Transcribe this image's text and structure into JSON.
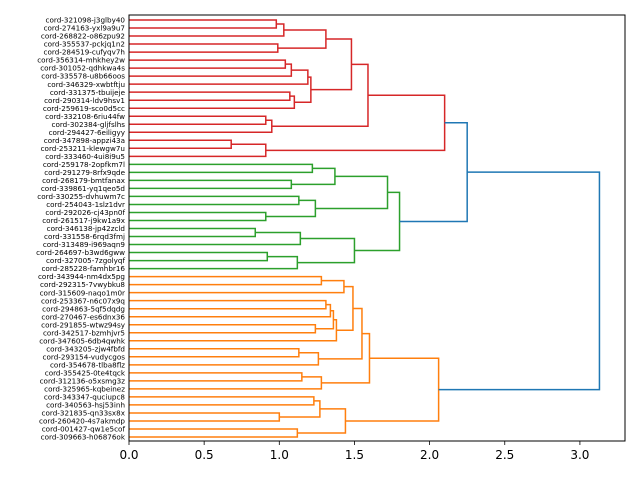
{
  "chart_data": {
    "type": "dendrogram",
    "orientation": "left",
    "title": "",
    "xlabel": "",
    "ylabel": "",
    "xlim": [
      0,
      3.3
    ],
    "xticks": [
      "0.0",
      "0.5",
      "1.0",
      "1.5",
      "2.0",
      "2.5",
      "3.0"
    ],
    "xtick_values": [
      0,
      0.5,
      1.0,
      1.5,
      2.0,
      2.5,
      3.0
    ],
    "colors": {
      "red": "#d62728",
      "green": "#2ca02c",
      "orange": "#ff7f0e",
      "blue": "#1f77b4"
    },
    "leaves": [
      "cord-321098-j3glby40",
      "cord-274163-yxl9a9u7",
      "cord-268822-o86zpu92",
      "cord-355537-pckjq1n2",
      "cord-284519-cufyqv7h",
      "cord-356314-mhkhey2w",
      "cord-301052-qdhkwa4s",
      "cord-335578-u8b66oos",
      "cord-346329-xwbtftju",
      "cord-331375-tbuijeje",
      "cord-290314-ldv9hsv1",
      "cord-259619-sco0d5cc",
      "cord-332108-6riu44fw",
      "cord-302384-gljfslhs",
      "cord-294427-6eiligyy",
      "cord-347898-appzi43a",
      "cord-253211-klewgw7u",
      "cord-333460-4ui8i9u5",
      "cord-259178-2opfkm7l",
      "cord-291279-8rfx9qde",
      "cord-268179-bmtfanax",
      "cord-339861-yq1qeo5d",
      "cord-330255-dvhuwm7c",
      "cord-254043-1slz1dvr",
      "cord-292026-cj43pn0f",
      "cord-261517-j9kw1a9x",
      "cord-346138-jp42zcld",
      "cord-331558-6rqd3fmj",
      "cord-313489-i969aqn9",
      "cord-264697-b3wd6gww",
      "cord-327005-7zgolyqf",
      "cord-285228-famhbr16",
      "cord-343944-nm4dx5pg",
      "cord-292315-7vwybku8",
      "cord-315609-naqo1m0r",
      "cord-253367-n6c07x9q",
      "cord-294863-5qf5dqdg",
      "cord-270467-es6dnx36",
      "cord-291855-wtwz94sy",
      "cord-342517-bzmhjvr5",
      "cord-347605-6db4qwhk",
      "cord-343205-zjw4fbfd",
      "cord-293154-vudycgos",
      "cord-354678-tlba8flz",
      "cord-355425-0te4tqck",
      "cord-312136-o5xsmg3z",
      "cord-325965-kqbeinez",
      "cord-343347-quciupc8",
      "cord-340563-hsj53inh",
      "cord-321835-qn33sx8x",
      "cord-260420-4s7akmdp",
      "cord-001427-qw1e5cof",
      "cord-309663-h06876ok"
    ],
    "merges": [
      {
        "id": "r1",
        "a": "L0",
        "b": "L1",
        "h": 0.98,
        "color": "red"
      },
      {
        "id": "r2",
        "a": "r1",
        "b": "L2",
        "h": 1.03,
        "color": "red"
      },
      {
        "id": "r3",
        "a": "L3",
        "b": "L4",
        "h": 0.99,
        "color": "red"
      },
      {
        "id": "r4",
        "a": "r2",
        "b": "r3",
        "h": 1.31,
        "color": "red"
      },
      {
        "id": "r5",
        "a": "L5",
        "b": "L6",
        "h": 1.04,
        "color": "red"
      },
      {
        "id": "r6",
        "a": "r5",
        "b": "L7",
        "h": 1.08,
        "color": "red"
      },
      {
        "id": "r7",
        "a": "r6",
        "b": "L8",
        "h": 1.19,
        "color": "red"
      },
      {
        "id": "r8",
        "a": "L9",
        "b": "L10",
        "h": 1.07,
        "color": "red"
      },
      {
        "id": "r9",
        "a": "r8",
        "b": "L11",
        "h": 1.1,
        "color": "red"
      },
      {
        "id": "r10",
        "a": "r7",
        "b": "r9",
        "h": 1.21,
        "color": "red"
      },
      {
        "id": "r11",
        "a": "r4",
        "b": "r10",
        "h": 1.48,
        "color": "red"
      },
      {
        "id": "r12",
        "a": "L12",
        "b": "L13",
        "h": 0.91,
        "color": "red"
      },
      {
        "id": "r13",
        "a": "r12",
        "b": "L14",
        "h": 0.95,
        "color": "red"
      },
      {
        "id": "r14",
        "a": "r11",
        "b": "r13",
        "h": 1.59,
        "color": "red"
      },
      {
        "id": "r15",
        "a": "L15",
        "b": "L16",
        "h": 0.68,
        "color": "red"
      },
      {
        "id": "r16",
        "a": "r15",
        "b": "L17",
        "h": 0.91,
        "color": "red"
      },
      {
        "id": "r17",
        "a": "r14",
        "b": "r16",
        "h": 2.1,
        "color": "red"
      },
      {
        "id": "g1",
        "a": "L18",
        "b": "L19",
        "h": 1.22,
        "color": "green"
      },
      {
        "id": "g2",
        "a": "L20",
        "b": "L21",
        "h": 1.08,
        "color": "green"
      },
      {
        "id": "g3",
        "a": "g1",
        "b": "g2",
        "h": 1.37,
        "color": "green"
      },
      {
        "id": "g4",
        "a": "L22",
        "b": "L23",
        "h": 1.13,
        "color": "green"
      },
      {
        "id": "g5",
        "a": "L24",
        "b": "L25",
        "h": 0.91,
        "color": "green"
      },
      {
        "id": "g6",
        "a": "g4",
        "b": "g5",
        "h": 1.24,
        "color": "green"
      },
      {
        "id": "g7",
        "a": "g3",
        "b": "g6",
        "h": 1.72,
        "color": "green"
      },
      {
        "id": "g8",
        "a": "L26",
        "b": "L27",
        "h": 0.84,
        "color": "green"
      },
      {
        "id": "g9",
        "a": "g8",
        "b": "L28",
        "h": 1.14,
        "color": "green"
      },
      {
        "id": "g10",
        "a": "L29",
        "b": "L30",
        "h": 0.92,
        "color": "green"
      },
      {
        "id": "g11",
        "a": "g10",
        "b": "L31",
        "h": 1.12,
        "color": "green"
      },
      {
        "id": "g12",
        "a": "g9",
        "b": "g11",
        "h": 1.5,
        "color": "green"
      },
      {
        "id": "g13",
        "a": "g7",
        "b": "g12",
        "h": 1.8,
        "color": "green"
      },
      {
        "id": "o1",
        "a": "L32",
        "b": "L33",
        "h": 1.28,
        "color": "orange"
      },
      {
        "id": "o2",
        "a": "o1",
        "b": "L34",
        "h": 1.43,
        "color": "orange"
      },
      {
        "id": "o3",
        "a": "L35",
        "b": "L36",
        "h": 1.31,
        "color": "orange"
      },
      {
        "id": "o4",
        "a": "o3",
        "b": "L37",
        "h": 1.34,
        "color": "orange"
      },
      {
        "id": "o5",
        "a": "L38",
        "b": "L39",
        "h": 1.24,
        "color": "orange"
      },
      {
        "id": "o6",
        "a": "o4",
        "b": "o5",
        "h": 1.36,
        "color": "orange"
      },
      {
        "id": "o7",
        "a": "o6",
        "b": "L40",
        "h": 1.38,
        "color": "orange"
      },
      {
        "id": "o8",
        "a": "o2",
        "b": "o7",
        "h": 1.49,
        "color": "orange"
      },
      {
        "id": "o9",
        "a": "L41",
        "b": "L42",
        "h": 1.13,
        "color": "orange"
      },
      {
        "id": "o10",
        "a": "o9",
        "b": "L43",
        "h": 1.26,
        "color": "orange"
      },
      {
        "id": "o11",
        "a": "o8",
        "b": "o10",
        "h": 1.55,
        "color": "orange"
      },
      {
        "id": "o12",
        "a": "L44",
        "b": "L45",
        "h": 1.15,
        "color": "orange"
      },
      {
        "id": "o13",
        "a": "o12",
        "b": "L46",
        "h": 1.28,
        "color": "orange"
      },
      {
        "id": "o14",
        "a": "o11",
        "b": "o13",
        "h": 1.6,
        "color": "orange"
      },
      {
        "id": "o15",
        "a": "L47",
        "b": "L48",
        "h": 1.23,
        "color": "orange"
      },
      {
        "id": "o16",
        "a": "L49",
        "b": "L50",
        "h": 1.0,
        "color": "orange"
      },
      {
        "id": "o17",
        "a": "o15",
        "b": "o16",
        "h": 1.27,
        "color": "orange"
      },
      {
        "id": "o18",
        "a": "L51",
        "b": "L52",
        "h": 1.12,
        "color": "orange"
      },
      {
        "id": "o19",
        "a": "o17",
        "b": "o18",
        "h": 1.44,
        "color": "orange"
      },
      {
        "id": "o20",
        "a": "o14",
        "b": "o19",
        "h": 2.06,
        "color": "orange"
      },
      {
        "id": "b1",
        "a": "r17",
        "b": "g13",
        "h": 2.25,
        "color": "blue"
      },
      {
        "id": "b2",
        "a": "b1",
        "b": "o20",
        "h": 3.13,
        "color": "blue"
      }
    ]
  }
}
